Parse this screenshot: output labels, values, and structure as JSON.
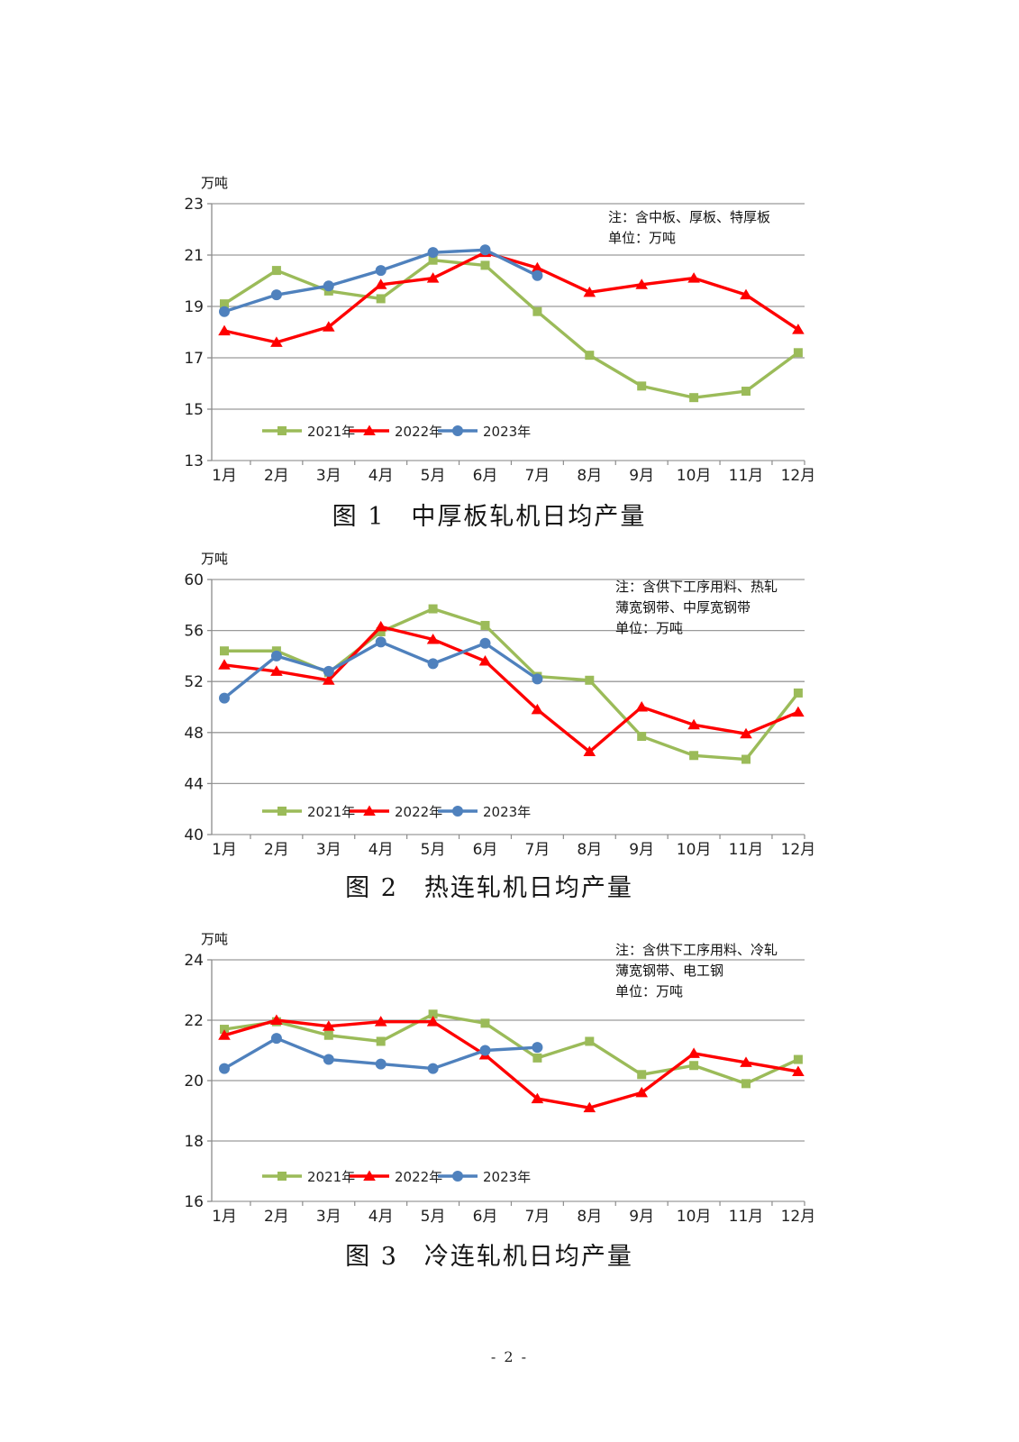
{
  "page": {
    "number_label": "- 2 -"
  },
  "style": {
    "grid_color": "#9a9a9a",
    "axis_color": "#8c8c8c",
    "tick_text_color": "#1f1f1f",
    "note_text_color": "#111111"
  },
  "chart_data": [
    {
      "type": "line",
      "title": "图 1　中厚板轧机日均产量",
      "unit_label": "万吨",
      "note_lines": [
        "注：含中板、厚板、特厚板",
        "单位：万吨"
      ],
      "categories": [
        "1月",
        "2月",
        "3月",
        "4月",
        "5月",
        "6月",
        "7月",
        "8月",
        "9月",
        "10月",
        "11月",
        "12月"
      ],
      "ylim": [
        13,
        23
      ],
      "ytick_step": 2,
      "grid": true,
      "legend_position": "inside-bottom-left",
      "series": [
        {
          "name": "2021年",
          "color": "#9BBB59",
          "marker": "square",
          "values": [
            19.1,
            20.4,
            19.6,
            19.3,
            20.8,
            20.6,
            18.8,
            17.1,
            15.9,
            15.45,
            15.7,
            17.2
          ]
        },
        {
          "name": "2022年",
          "color": "#FE0000",
          "marker": "triangle",
          "values": [
            18.05,
            17.6,
            18.2,
            19.85,
            20.1,
            21.1,
            20.5,
            19.55,
            19.85,
            20.1,
            19.45,
            18.1
          ]
        },
        {
          "name": "2023年",
          "color": "#4F81BD",
          "marker": "circle",
          "values": [
            18.8,
            19.45,
            19.8,
            20.4,
            21.1,
            21.2,
            20.2,
            null,
            null,
            null,
            null,
            null
          ]
        }
      ]
    },
    {
      "type": "line",
      "title": "图 2　热连轧机日均产量",
      "unit_label": "万吨",
      "note_lines": [
        "注：含供下工序用料、热轧",
        "薄宽钢带、中厚宽钢带",
        "单位：万吨"
      ],
      "categories": [
        "1月",
        "2月",
        "3月",
        "4月",
        "5月",
        "6月",
        "7月",
        "8月",
        "9月",
        "10月",
        "11月",
        "12月"
      ],
      "ylim": [
        40,
        60
      ],
      "ytick_step": 4,
      "grid": true,
      "legend_position": "inside-bottom-left",
      "series": [
        {
          "name": "2021年",
          "color": "#9BBB59",
          "marker": "square",
          "values": [
            54.4,
            54.4,
            52.7,
            55.9,
            57.7,
            56.4,
            52.4,
            52.1,
            47.7,
            46.2,
            45.9,
            51.1
          ]
        },
        {
          "name": "2022年",
          "color": "#FE0000",
          "marker": "triangle",
          "values": [
            53.3,
            52.8,
            52.1,
            56.3,
            55.3,
            53.6,
            49.8,
            46.5,
            50.0,
            48.6,
            47.9,
            49.6
          ]
        },
        {
          "name": "2023年",
          "color": "#4F81BD",
          "marker": "circle",
          "values": [
            50.7,
            54.0,
            52.8,
            55.1,
            53.4,
            55.0,
            52.2,
            null,
            null,
            null,
            null,
            null
          ]
        }
      ]
    },
    {
      "type": "line",
      "title": "图 3　冷连轧机日均产量",
      "unit_label": "万吨",
      "note_lines": [
        "注：含供下工序用料、冷轧",
        "薄宽钢带、电工钢",
        "单位：万吨"
      ],
      "categories": [
        "1月",
        "2月",
        "3月",
        "4月",
        "5月",
        "6月",
        "7月",
        "8月",
        "9月",
        "10月",
        "11月",
        "12月"
      ],
      "ylim": [
        16,
        24
      ],
      "ytick_step": 2,
      "grid": true,
      "legend_position": "inside-bottom-left",
      "series": [
        {
          "name": "2021年",
          "color": "#9BBB59",
          "marker": "square",
          "values": [
            21.7,
            21.95,
            21.5,
            21.3,
            22.2,
            21.9,
            20.75,
            21.3,
            20.2,
            20.5,
            19.9,
            20.7
          ]
        },
        {
          "name": "2022年",
          "color": "#FE0000",
          "marker": "triangle",
          "values": [
            21.5,
            22.0,
            21.8,
            21.95,
            21.95,
            20.85,
            19.4,
            19.1,
            19.6,
            20.9,
            20.6,
            20.3
          ]
        },
        {
          "name": "2023年",
          "color": "#4F81BD",
          "marker": "circle",
          "values": [
            20.4,
            21.4,
            20.7,
            20.55,
            20.4,
            21.0,
            21.1,
            null,
            null,
            null,
            null,
            null
          ]
        }
      ]
    }
  ]
}
